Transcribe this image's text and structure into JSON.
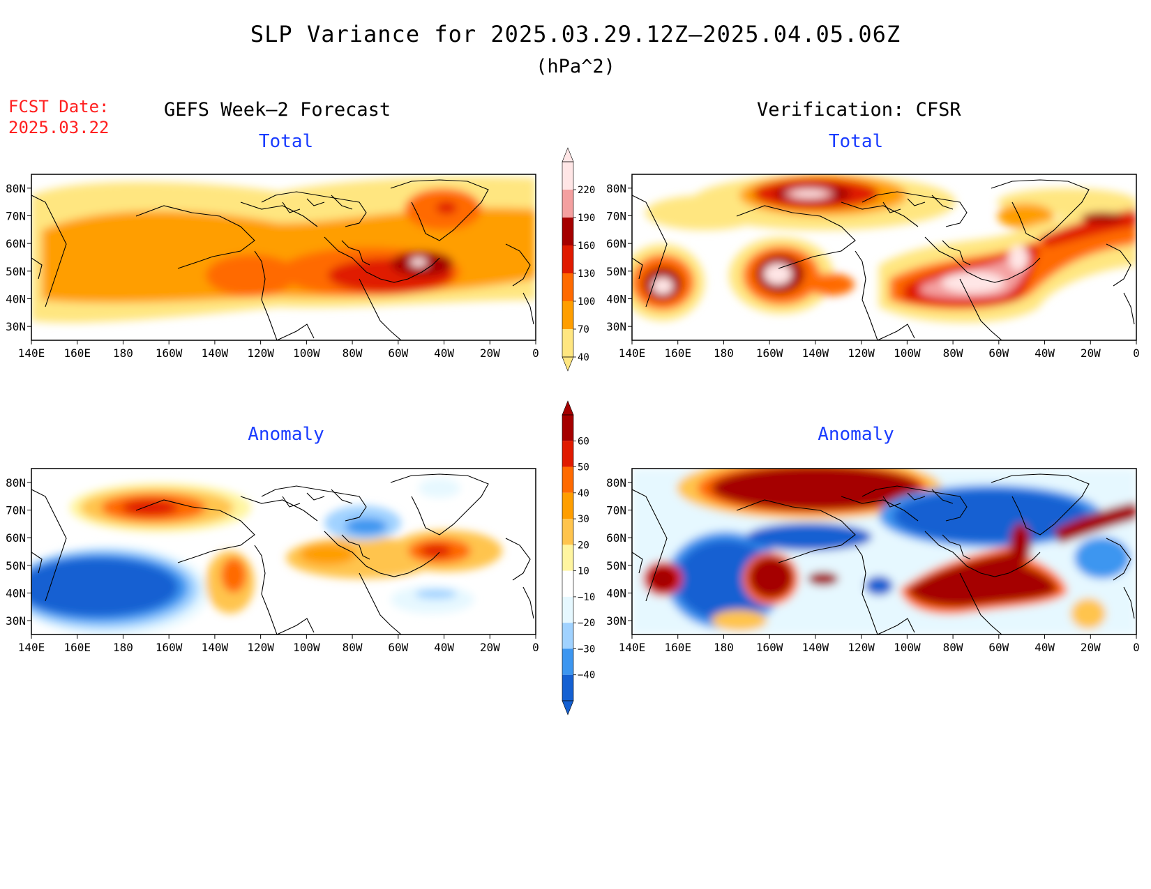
{
  "title": "SLP Variance for 2025.03.29.12Z–2025.04.05.06Z",
  "units": "(hPa^2)",
  "fcst_date_label": "FCST Date:",
  "fcst_date": "2025.03.22",
  "columns": {
    "forecast": "GEFS Week–2 Forecast",
    "verification": "Verification: CFSR"
  },
  "panels": {
    "total_forecast": "Total",
    "total_verification": "Total",
    "anomaly_forecast": "Anomaly",
    "anomaly_verification": "Anomaly"
  },
  "axes": {
    "lat_labels": [
      "80N",
      "70N",
      "60N",
      "50N",
      "40N",
      "30N"
    ],
    "lat_values": [
      80,
      70,
      60,
      50,
      40,
      30
    ],
    "lon_labels": [
      "140E",
      "160E",
      "180",
      "160W",
      "140W",
      "120W",
      "100W",
      "80W",
      "60W",
      "40W",
      "20W",
      "0"
    ],
    "lat_range": [
      25,
      85
    ],
    "lon_range": [
      140,
      360
    ]
  },
  "colorbars": {
    "total": {
      "levels": [
        "220",
        "190",
        "160",
        "130",
        "100",
        "70",
        "40"
      ],
      "colors": [
        "#ffe6e6",
        "#f4a0a0",
        "#a50000",
        "#e01a00",
        "#ff6a00",
        "#ff9e00",
        "#ffe680"
      ]
    },
    "anomaly": {
      "levels": [
        "60",
        "50",
        "40",
        "30",
        "20",
        "10",
        "−10",
        "−20",
        "−30",
        "−40"
      ],
      "colors": [
        "#a50000",
        "#e01a00",
        "#ff6a00",
        "#ff9e00",
        "#ffc44d",
        "#fff5a0",
        "#ffffff",
        "#e6f8ff",
        "#a0d2ff",
        "#3c96f0",
        "#1460d2"
      ]
    }
  }
}
